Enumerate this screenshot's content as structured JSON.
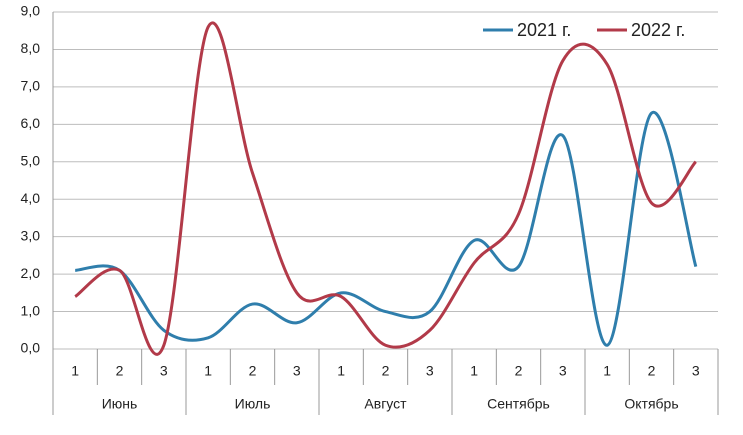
{
  "chart_data": {
    "type": "line",
    "categories": [
      "1",
      "2",
      "3",
      "1",
      "2",
      "3",
      "1",
      "2",
      "3",
      "1",
      "2",
      "3",
      "1",
      "2",
      "3"
    ],
    "category_groups": [
      "Июнь",
      "Июль",
      "Август",
      "Сентябрь",
      "Октябрь"
    ],
    "series": [
      {
        "name": "2021 г.",
        "color": "#2f7eac",
        "values": [
          2.1,
          2.1,
          0.5,
          0.3,
          1.2,
          0.7,
          1.5,
          1.0,
          1.0,
          2.9,
          2.2,
          5.7,
          0.1,
          6.3,
          2.2
        ]
      },
      {
        "name": "2022 г.",
        "color": "#b23a49",
        "values": [
          1.4,
          2.1,
          0.1,
          8.6,
          4.7,
          1.5,
          1.4,
          0.1,
          0.5,
          2.3,
          3.6,
          7.7,
          7.6,
          3.9,
          5.0
        ]
      }
    ],
    "ylim": [
      0,
      9
    ],
    "yticks": [
      {
        "value": 0,
        "label": "0,0"
      },
      {
        "value": 1,
        "label": "1,0"
      },
      {
        "value": 2,
        "label": "2,0"
      },
      {
        "value": 3,
        "label": "3,0"
      },
      {
        "value": 4,
        "label": "4,0"
      },
      {
        "value": 5,
        "label": "5,0"
      },
      {
        "value": 6,
        "label": "6,0"
      },
      {
        "value": 7,
        "label": "7,0"
      },
      {
        "value": 8,
        "label": "8,0"
      },
      {
        "value": 9,
        "label": "9,0"
      }
    ],
    "grid": true,
    "smooth": true,
    "legend": "top-right"
  }
}
